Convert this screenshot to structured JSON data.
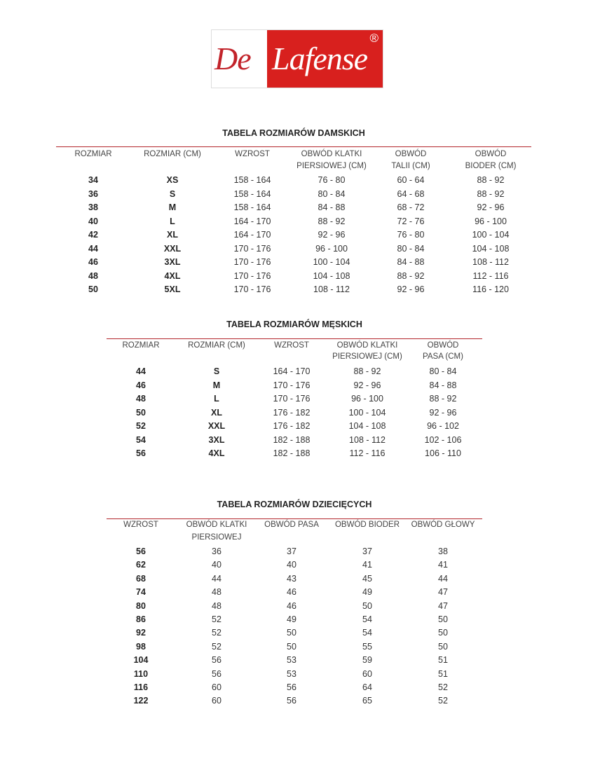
{
  "brand": {
    "logo_text": "De Lafense",
    "logo_part1": "De",
    "logo_part2": "Lafense",
    "registered_mark": "®",
    "colors": {
      "red": "#d8201e",
      "rule": "#b3262c"
    }
  },
  "tables": [
    {
      "title": "TABELA ROZMIARÓW DAMSKICH",
      "headers": [
        [
          "ROZMIAR"
        ],
        [
          "ROZMIAR (CM)"
        ],
        [
          "WZROST"
        ],
        [
          "OBWÓD KLATKI",
          "PIERSIOWEJ (CM)"
        ],
        [
          "OBWÓD",
          "TALII (CM)"
        ],
        [
          "OBWÓD",
          "BIODER (CM)"
        ]
      ],
      "rows": [
        [
          "34",
          "XS",
          "158 - 164",
          "76 - 80",
          "60 - 64",
          "88 - 92"
        ],
        [
          "36",
          "S",
          "158 - 164",
          "80 - 84",
          "64 - 68",
          "88 - 92"
        ],
        [
          "38",
          "M",
          "158 - 164",
          "84 - 88",
          "68 - 72",
          "92 - 96"
        ],
        [
          "40",
          "L",
          "164 - 170",
          "88 - 92",
          "72 - 76",
          "96 - 100"
        ],
        [
          "42",
          "XL",
          "164 - 170",
          "92 - 96",
          "76 - 80",
          "100 - 104"
        ],
        [
          "44",
          "XXL",
          "170 - 176",
          "96 - 100",
          "80 - 84",
          "104 - 108"
        ],
        [
          "46",
          "3XL",
          "170 - 176",
          "100 - 104",
          "84 - 88",
          "108 - 112"
        ],
        [
          "48",
          "4XL",
          "170 - 176",
          "104 - 108",
          "88 - 92",
          "112 - 116"
        ],
        [
          "50",
          "5XL",
          "170 - 176",
          "108 - 112",
          "92 - 96",
          "116 - 120"
        ]
      ]
    },
    {
      "title": "TABELA ROZMIARÓW MĘSKICH",
      "headers": [
        [
          "ROZMIAR"
        ],
        [
          "ROZMIAR (CM)"
        ],
        [
          "WZROST"
        ],
        [
          "OBWÓD KLATKI",
          "PIERSIOWEJ (CM)"
        ],
        [
          "OBWÓD",
          "PASA (CM)"
        ]
      ],
      "rows": [
        [
          "44",
          "S",
          "164 - 170",
          "88 - 92",
          "80 - 84"
        ],
        [
          "46",
          "M",
          "170 - 176",
          "92 - 96",
          "84 - 88"
        ],
        [
          "48",
          "L",
          "170 - 176",
          "96 - 100",
          "88 - 92"
        ],
        [
          "50",
          "XL",
          "176 - 182",
          "100 - 104",
          "92 - 96"
        ],
        [
          "52",
          "XXL",
          "176 - 182",
          "104 - 108",
          "96 - 102"
        ],
        [
          "54",
          "3XL",
          "182 - 188",
          "108 - 112",
          "102 - 106"
        ],
        [
          "56",
          "4XL",
          "182 - 188",
          "112 - 116",
          "106 - 110"
        ]
      ]
    },
    {
      "title": "TABELA ROZMIARÓW DZIECIĘCYCH",
      "headers": [
        [
          "WZROST"
        ],
        [
          "OBWÓD KLATKI",
          "PIERSIOWEJ"
        ],
        [
          "OBWÓD PASA"
        ],
        [
          "OBWÓD BIODER"
        ],
        [
          "OBWÓD GŁOWY"
        ]
      ],
      "rows": [
        [
          "56",
          "36",
          "37",
          "37",
          "38"
        ],
        [
          "62",
          "40",
          "40",
          "41",
          "41"
        ],
        [
          "68",
          "44",
          "43",
          "45",
          "44"
        ],
        [
          "74",
          "48",
          "46",
          "49",
          "47"
        ],
        [
          "80",
          "48",
          "46",
          "50",
          "47"
        ],
        [
          "86",
          "52",
          "49",
          "54",
          "50"
        ],
        [
          "92",
          "52",
          "50",
          "54",
          "50"
        ],
        [
          "98",
          "52",
          "50",
          "55",
          "50"
        ],
        [
          "104",
          "56",
          "53",
          "59",
          "51"
        ],
        [
          "110",
          "56",
          "53",
          "60",
          "51"
        ],
        [
          "116",
          "60",
          "56",
          "64",
          "52"
        ],
        [
          "122",
          "60",
          "56",
          "65",
          "52"
        ]
      ]
    }
  ]
}
